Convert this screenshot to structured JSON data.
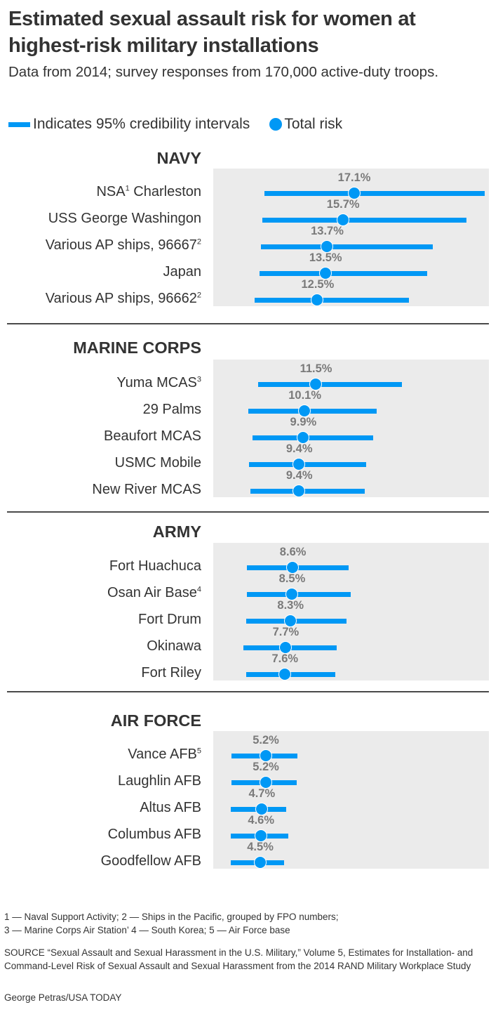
{
  "title": "Estimated sexual assault risk for women at highest-risk military installations",
  "subtitle": "Data from 2014; survey responses from 170,000 active-duty troops.",
  "legend": {
    "interval_label": "Indicates 95% credibility intervals",
    "point_label": "Total risk"
  },
  "colors": {
    "accent": "#0098f5",
    "panel_bg": "#ebebeb",
    "value_text": "#7a7a7a",
    "text": "#333333"
  },
  "footnotes": {
    "line1": "1 — Naval Support Activity; 2 — Ships in the Pacific, grouped by FPO numbers;",
    "line2": "3 — Marine Corps Air Station’ 4 — South Korea; 5 — Air Force base"
  },
  "source": "SOURCE “Sexual Assault and Sexual Harassment in the U.S. Military,” Volume 5, Estimates for Installation- and Command-Level Risk of Sexual Assault and Sexual Harassment from the 2014 RAND Military Workplace Study",
  "credit": "George Petras/USA TODAY",
  "sections": [
    {
      "name": "NAVY",
      "rows": [
        {
          "label": "NSA",
          "sup": "1",
          "label_after": " Charleston",
          "value_label": "17.1%"
        },
        {
          "label": "USS George Washingon",
          "sup": "",
          "label_after": "",
          "value_label": "15.7%"
        },
        {
          "label": "Various AP ships, 96667",
          "sup": "2",
          "label_after": "",
          "value_label": "13.7%"
        },
        {
          "label": "Japan",
          "sup": "",
          "label_after": "",
          "value_label": "13.5%"
        },
        {
          "label": "Various AP ships, 96662",
          "sup": "2",
          "label_after": "",
          "value_label": "12.5%"
        }
      ]
    },
    {
      "name": "MARINE CORPS",
      "rows": [
        {
          "label": "Yuma MCAS",
          "sup": "3",
          "label_after": "",
          "value_label": "11.5%"
        },
        {
          "label": "29 Palms",
          "sup": "",
          "label_after": "",
          "value_label": "10.1%"
        },
        {
          "label": "Beaufort MCAS",
          "sup": "",
          "label_after": "",
          "value_label": "9.9%"
        },
        {
          "label": "USMC Mobile",
          "sup": "",
          "label_after": "",
          "value_label": "9.4%"
        },
        {
          "label": "New River MCAS",
          "sup": "",
          "label_after": "",
          "value_label": "9.4%"
        }
      ]
    },
    {
      "name": "ARMY",
      "rows": [
        {
          "label": "Fort Huachuca",
          "sup": "",
          "label_after": "",
          "value_label": "8.6%"
        },
        {
          "label": "Osan Air Base",
          "sup": "4",
          "label_after": "",
          "value_label": "8.5%"
        },
        {
          "label": "Fort Drum",
          "sup": "",
          "label_after": "",
          "value_label": "8.3%"
        },
        {
          "label": "Okinawa",
          "sup": "",
          "label_after": "",
          "value_label": "7.7%"
        },
        {
          "label": "Fort Riley",
          "sup": "",
          "label_after": "",
          "value_label": "7.6%"
        }
      ]
    },
    {
      "name": "AIR FORCE",
      "rows": [
        {
          "label": "Vance AFB",
          "sup": "5",
          "label_after": "",
          "value_label": "5.2%"
        },
        {
          "label": "Laughlin AFB",
          "sup": "",
          "label_after": "",
          "value_label": "5.2%"
        },
        {
          "label": "Altus AFB",
          "sup": "",
          "label_after": "",
          "value_label": "4.7%"
        },
        {
          "label": "Columbus AFB",
          "sup": "",
          "label_after": "",
          "value_label": "4.6%"
        },
        {
          "label": "Goodfellow AFB",
          "sup": "",
          "label_after": "",
          "value_label": "4.5%"
        }
      ]
    }
  ],
  "chart_data": {
    "type": "dot-interval",
    "title": "Estimated sexual assault risk for women at highest-risk military installations",
    "subtitle": "Data from 2014; survey responses from 170,000 active-duty troops.",
    "legend": [
      "Indicates 95% credibility intervals",
      "Total risk"
    ],
    "xlabel": "",
    "ylabel": "",
    "grid": false,
    "units": "percent",
    "groups": [
      {
        "name": "NAVY",
        "categories": [
          "NSA Charleston",
          "USS George Washingon",
          "Various AP ships, 96667",
          "Japan",
          "Various AP ships, 96662"
        ],
        "values": [
          17.1,
          15.7,
          13.7,
          13.5,
          12.5
        ],
        "ci_low": [
          5.7,
          5.5,
          5.3,
          5.1,
          4.5
        ],
        "ci_high": [
          33.4,
          31.1,
          26.9,
          26.2,
          23.9
        ]
      },
      {
        "name": "MARINE CORPS",
        "categories": [
          "Yuma MCAS",
          "29 Palms",
          "Beaufort MCAS",
          "USMC Mobile",
          "New River MCAS"
        ],
        "values": [
          11.5,
          10.1,
          9.9,
          9.4,
          9.4
        ],
        "ci_low": [
          4.9,
          3.7,
          4.2,
          3.8,
          4.0
        ],
        "ci_high": [
          23.0,
          19.8,
          19.4,
          18.5,
          18.3
        ]
      },
      {
        "name": "ARMY",
        "categories": [
          "Fort Huachuca",
          "Osan Air Base",
          "Fort Drum",
          "Okinawa",
          "Fort Riley"
        ],
        "values": [
          8.6,
          8.5,
          8.3,
          7.7,
          7.6
        ],
        "ci_low": [
          3.5,
          3.5,
          3.4,
          3.1,
          3.4
        ],
        "ci_high": [
          16.3,
          16.6,
          16.0,
          14.8,
          14.6
        ]
      },
      {
        "name": "AIR FORCE",
        "categories": [
          "Vance AFB",
          "Laughlin AFB",
          "Altus AFB",
          "Columbus AFB",
          "Goodfellow AFB"
        ],
        "values": [
          5.2,
          5.2,
          4.7,
          4.6,
          4.5
        ],
        "ci_low": [
          1.6,
          1.6,
          1.5,
          1.5,
          1.5
        ],
        "ci_high": [
          9.9,
          9.8,
          8.5,
          8.7,
          8.2
        ]
      }
    ]
  }
}
